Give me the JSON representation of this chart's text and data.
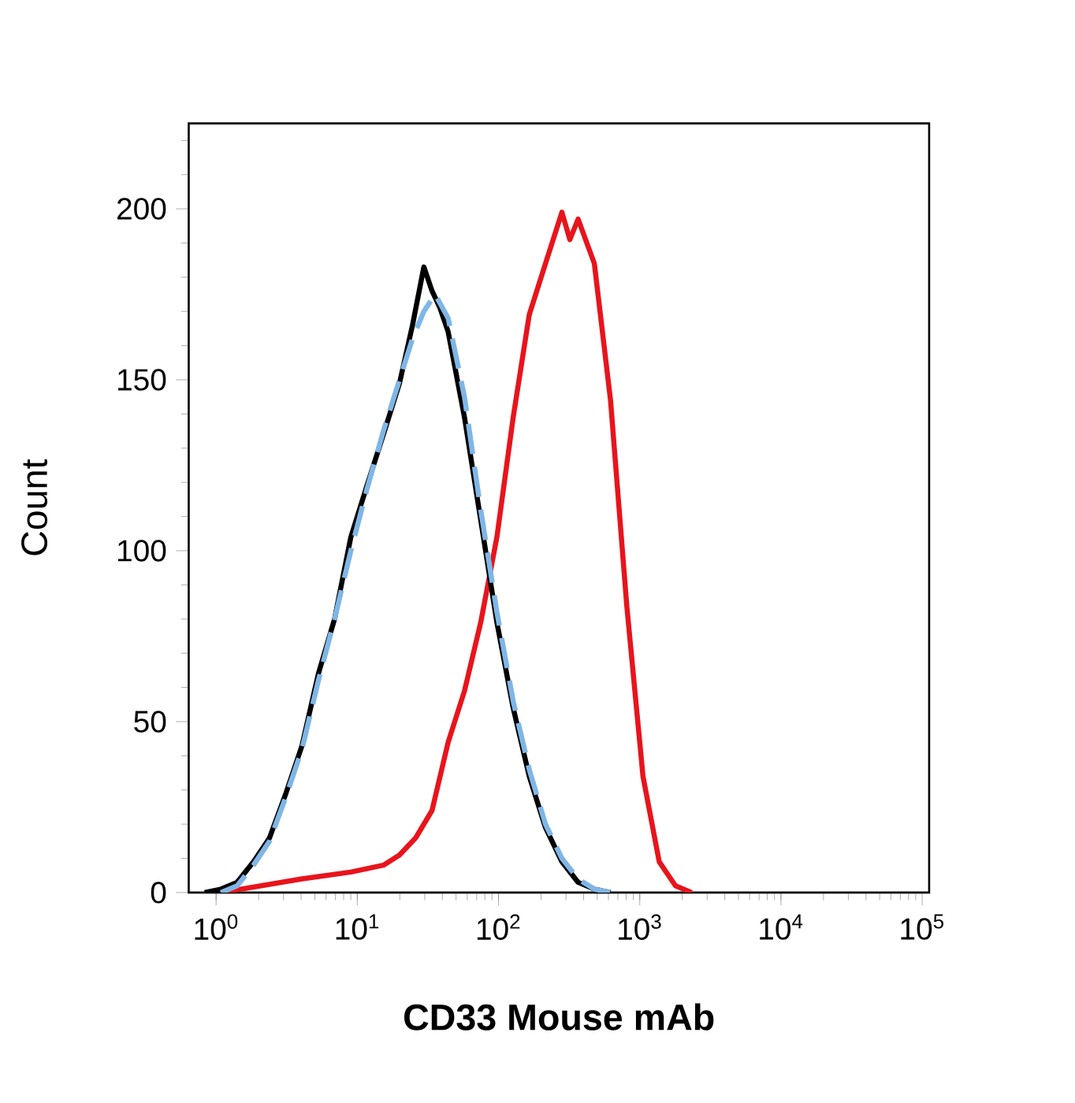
{
  "chart_data": {
    "type": "line",
    "xlabel": "CD33 Mouse mAb",
    "ylabel": "Count",
    "log": "x",
    "xlim": [
      0.64,
      112000
    ],
    "ylim": [
      0,
      225
    ],
    "xticks": [
      {
        "value": 1,
        "label": "10$^{0}$"
      },
      {
        "value": 10,
        "label": "10$^{1}$"
      },
      {
        "value": 100,
        "label": "10$^{2}$"
      },
      {
        "value": 1000,
        "label": "10$^{3}$"
      },
      {
        "value": 10000,
        "label": "10$^{4}$"
      },
      {
        "value": 100000,
        "label": "10$^{5}$"
      }
    ],
    "yticks": [
      0,
      50,
      100,
      150,
      200
    ],
    "marker": "none",
    "series": [
      {
        "color": "#e8141c",
        "line_style": "solid",
        "x": [
          1.08,
          4.06,
          9.0,
          15.3,
          19.9,
          25.9,
          33.8,
          44.0,
          57.4,
          74.8,
          97.4,
          127,
          165,
          215,
          281,
          320,
          366,
          477,
          621,
          809,
          1054,
          1374,
          1790,
          2333
        ],
        "values": [
          0,
          4,
          6,
          8,
          11,
          16,
          24,
          44,
          59,
          79,
          104,
          139,
          169,
          184,
          199,
          191,
          197,
          184,
          144,
          84,
          34,
          9,
          2,
          0
        ]
      },
      {
        "color": "#000000",
        "line_style": "solid",
        "x": [
          0.83,
          1.08,
          1.41,
          1.84,
          2.39,
          3.12,
          4.06,
          5.3,
          6.9,
          9.0,
          11.7,
          15.3,
          19.9,
          24.6,
          29.6,
          33.8,
          38.5,
          44.0,
          57.4,
          74.8,
          97.4,
          127,
          165,
          215,
          281,
          366,
          477,
          621
        ],
        "values": [
          0,
          1,
          3,
          9,
          16,
          29,
          43,
          64,
          80,
          104,
          119,
          134,
          149,
          166,
          183,
          176,
          171,
          164,
          139,
          109,
          79,
          54,
          34,
          19,
          9,
          3,
          1,
          0
        ]
      },
      {
        "color": "#7fb6e6",
        "line_style": "dashed",
        "x": [
          1.08,
          1.41,
          1.84,
          2.39,
          3.12,
          4.06,
          5.3,
          6.9,
          9.0,
          11.7,
          15.3,
          19.9,
          24.6,
          29.6,
          35.6,
          44.0,
          57.4,
          74.8,
          97.4,
          127,
          165,
          215,
          281,
          366,
          477,
          621
        ],
        "values": [
          0,
          2,
          8,
          15,
          28,
          42,
          62,
          80,
          100,
          118,
          135,
          150,
          162,
          170,
          175,
          168,
          145,
          112,
          82,
          56,
          36,
          20,
          10,
          4,
          1,
          0
        ]
      }
    ]
  }
}
